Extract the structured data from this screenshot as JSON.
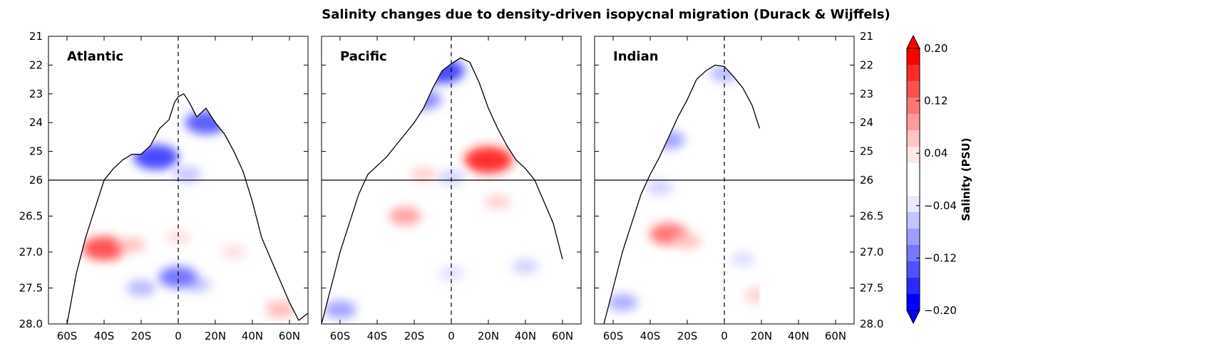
{
  "chart_data": {
    "type": "heatmap",
    "title": "Salinity changes due to density-driven isopycnal migration (Durack & Wijffels)",
    "x_ticks": [
      "60S",
      "40S",
      "20S",
      "0",
      "20N",
      "40N",
      "60N"
    ],
    "x_tick_values": [
      -60,
      -40,
      -20,
      0,
      20,
      40,
      60
    ],
    "xlim": [
      -70,
      70
    ],
    "y_ticks": [
      "21",
      "22",
      "23",
      "24",
      "25",
      "26",
      "26.5",
      "27.0",
      "27.5",
      "28.0"
    ],
    "y_ticks_right": [
      "21",
      "22",
      "23",
      "24",
      "25",
      "26",
      "26.5",
      "27.0",
      "27.5",
      "28.0"
    ],
    "y_upper_range": [
      21,
      26
    ],
    "y_lower_range": [
      26,
      28
    ],
    "y_break": 26,
    "panels": [
      {
        "name": "Atlantic",
        "outcrop": [
          [
            -60,
            28.0
          ],
          [
            -55,
            27.3
          ],
          [
            -50,
            26.8
          ],
          [
            -45,
            26.4
          ],
          [
            -40,
            26.0
          ],
          [
            -35,
            25.6
          ],
          [
            -30,
            25.3
          ],
          [
            -25,
            25.1
          ],
          [
            -20,
            25.1
          ],
          [
            -15,
            24.8
          ],
          [
            -10,
            24.2
          ],
          [
            -5,
            23.9
          ],
          [
            -2,
            23.3
          ],
          [
            0,
            23.1
          ],
          [
            3,
            23.0
          ],
          [
            6,
            23.3
          ],
          [
            10,
            23.8
          ],
          [
            15,
            23.5
          ],
          [
            20,
            24.0
          ],
          [
            25,
            24.4
          ],
          [
            30,
            25.0
          ],
          [
            35,
            25.7
          ],
          [
            40,
            26.3
          ],
          [
            45,
            26.8
          ],
          [
            50,
            27.1
          ],
          [
            55,
            27.4
          ],
          [
            60,
            27.7
          ],
          [
            65,
            27.95
          ],
          [
            70,
            27.85
          ]
        ],
        "anomalies": [
          {
            "lat": -12,
            "sigma": 25.2,
            "value": -0.16
          },
          {
            "lat": 15,
            "sigma": 24.0,
            "value": -0.14
          },
          {
            "lat": 5,
            "sigma": 25.8,
            "value": -0.05
          },
          {
            "lat": -40,
            "sigma": 26.95,
            "value": 0.15
          },
          {
            "lat": -25,
            "sigma": 26.9,
            "value": 0.05
          },
          {
            "lat": 0,
            "sigma": 26.8,
            "value": 0.03
          },
          {
            "lat": 30,
            "sigma": 27.0,
            "value": 0.03
          },
          {
            "lat": -20,
            "sigma": 27.5,
            "value": -0.06
          },
          {
            "lat": 10,
            "sigma": 27.45,
            "value": -0.05
          },
          {
            "lat": 0,
            "sigma": 27.35,
            "value": -0.12
          },
          {
            "lat": 55,
            "sigma": 27.8,
            "value": 0.06
          }
        ]
      },
      {
        "name": "Pacific",
        "outcrop": [
          [
            -70,
            28.0
          ],
          [
            -65,
            27.5
          ],
          [
            -60,
            27.0
          ],
          [
            -55,
            26.6
          ],
          [
            -50,
            26.2
          ],
          [
            -45,
            25.8
          ],
          [
            -40,
            25.5
          ],
          [
            -35,
            25.2
          ],
          [
            -30,
            24.8
          ],
          [
            -25,
            24.4
          ],
          [
            -20,
            24.0
          ],
          [
            -15,
            23.5
          ],
          [
            -10,
            22.8
          ],
          [
            -5,
            22.2
          ],
          [
            0,
            21.95
          ],
          [
            5,
            21.75
          ],
          [
            10,
            21.9
          ],
          [
            15,
            22.6
          ],
          [
            20,
            23.5
          ],
          [
            25,
            24.2
          ],
          [
            30,
            24.8
          ],
          [
            35,
            25.3
          ],
          [
            40,
            25.6
          ],
          [
            45,
            26.0
          ],
          [
            50,
            26.3
          ],
          [
            55,
            26.6
          ],
          [
            60,
            27.1
          ]
        ],
        "anomalies": [
          {
            "lat": -5,
            "sigma": 22.2,
            "value": -0.16
          },
          {
            "lat": -15,
            "sigma": 23.2,
            "value": -0.1
          },
          {
            "lat": 20,
            "sigma": 25.3,
            "value": 0.18
          },
          {
            "lat": -25,
            "sigma": 26.5,
            "value": 0.08
          },
          {
            "lat": -15,
            "sigma": 25.8,
            "value": 0.04
          },
          {
            "lat": 25,
            "sigma": 26.3,
            "value": 0.04
          },
          {
            "lat": 0,
            "sigma": 25.9,
            "value": -0.04
          },
          {
            "lat": 40,
            "sigma": 27.2,
            "value": -0.04
          },
          {
            "lat": 0,
            "sigma": 27.3,
            "value": -0.03
          },
          {
            "lat": -60,
            "sigma": 27.8,
            "value": -0.08
          }
        ]
      },
      {
        "name": "Indian",
        "outcrop": [
          [
            -65,
            28.0
          ],
          [
            -60,
            27.5
          ],
          [
            -55,
            27.0
          ],
          [
            -50,
            26.6
          ],
          [
            -45,
            26.2
          ],
          [
            -40,
            25.8
          ],
          [
            -35,
            25.2
          ],
          [
            -30,
            24.5
          ],
          [
            -25,
            23.8
          ],
          [
            -20,
            23.2
          ],
          [
            -15,
            22.5
          ],
          [
            -10,
            22.2
          ],
          [
            -5,
            22.0
          ],
          [
            0,
            22.05
          ],
          [
            5,
            22.4
          ],
          [
            10,
            22.8
          ],
          [
            15,
            23.4
          ],
          [
            19,
            24.2
          ]
        ],
        "anomalies": [
          {
            "lat": -30,
            "sigma": 26.75,
            "value": 0.12
          },
          {
            "lat": -20,
            "sigma": 26.85,
            "value": 0.05
          },
          {
            "lat": -30,
            "sigma": 24.6,
            "value": -0.08
          },
          {
            "lat": -35,
            "sigma": 26.1,
            "value": -0.04
          },
          {
            "lat": -55,
            "sigma": 27.7,
            "value": -0.07
          },
          {
            "lat": 18,
            "sigma": 27.6,
            "value": 0.04
          },
          {
            "lat": 10,
            "sigma": 27.1,
            "value": -0.03
          },
          {
            "lat": 0,
            "sigma": 22.3,
            "value": -0.06
          }
        ]
      }
    ],
    "colorbar": {
      "label": "Salinity (PSU)",
      "ticks": [
        "0.20",
        "0.12",
        "0.04",
        "−0.04",
        "−0.12",
        "−0.20"
      ],
      "tick_values": [
        0.2,
        0.12,
        0.04,
        -0.04,
        -0.12,
        -0.2
      ],
      "range": [
        -0.2,
        0.2
      ],
      "colors_top_to_bottom": [
        "#ff0000",
        "#ff2a2a",
        "#ff5050",
        "#ff7777",
        "#ff9d9d",
        "#ffc4c4",
        "#ffe8e8",
        "#ffffff",
        "#ffffff",
        "#e8e8ff",
        "#c4c4ff",
        "#9d9dff",
        "#7777ff",
        "#5050ff",
        "#2a2aff",
        "#0000ff"
      ]
    },
    "grid": false
  }
}
